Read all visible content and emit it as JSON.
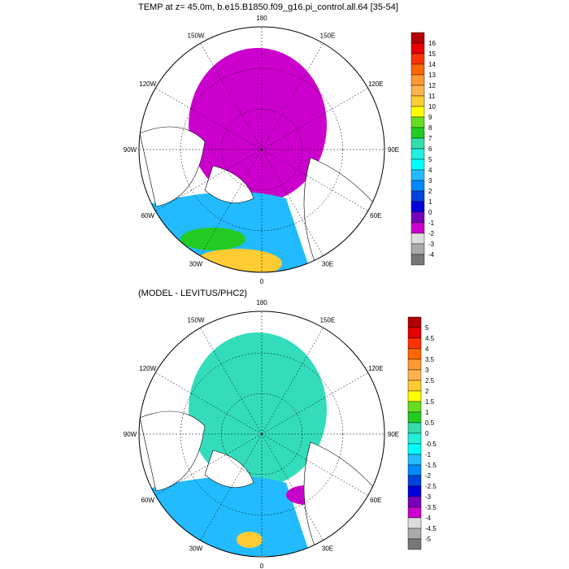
{
  "panels": [
    {
      "title": "TEMP at z=  45.0m, b.e15.B1850.f09_g16.pi_control.all.64 [35-54]",
      "labels": {
        "top": "180",
        "nw": "150W",
        "ne": "150E",
        "wnw": "120W",
        "ene": "120E",
        "w": "90W",
        "e": "90E",
        "wsw": "60W",
        "ese": "60E",
        "sw": "30W",
        "se": "30E",
        "bottom": "0"
      },
      "colorbar": {
        "labels": [
          "16",
          "15",
          "14",
          "13",
          "12",
          "11",
          "10",
          "9",
          "8",
          "7",
          "6",
          "5",
          "4",
          "3",
          "2",
          "1",
          "0",
          "-1",
          "-2",
          "-3",
          "-4"
        ],
        "colors": [
          "#b30000",
          "#e60000",
          "#ff3300",
          "#ff6600",
          "#ff9933",
          "#ffb34d",
          "#ffcc33",
          "#ffff00",
          "#66dd22",
          "#22cc22",
          "#33ddaa",
          "#22eedd",
          "#00ffff",
          "#22bbff",
          "#0088ff",
          "#0044dd",
          "#0000dd",
          "#7700bb",
          "#cc00cc",
          "#dddddd",
          "#aaaaaa",
          "#777777"
        ]
      },
      "fill": {
        "ocean": "#cc00cc",
        "south": "#22bbff"
      }
    },
    {
      "title": "(MODEL - LEVITUS/PHC2)",
      "labels": {
        "top": "180",
        "nw": "150W",
        "ne": "150E",
        "wnw": "120W",
        "ene": "120E",
        "w": "90W",
        "e": "90E",
        "wsw": "60W",
        "ese": "60E",
        "sw": "30W",
        "se": "30E",
        "bottom": "0"
      },
      "colorbar": {
        "labels": [
          "5",
          "4.5",
          "4",
          "3.5",
          "3",
          "2.5",
          "2",
          "1.5",
          "1",
          "0.5",
          "0",
          "-0.5",
          "-1",
          "-1.5",
          "-2",
          "-2.5",
          "-3",
          "-3.5",
          "-4",
          "-4.5",
          "-5"
        ],
        "colors": [
          "#b30000",
          "#e60000",
          "#ff3300",
          "#ff6600",
          "#ff9933",
          "#ffb34d",
          "#ffcc33",
          "#ffff00",
          "#66dd22",
          "#22cc22",
          "#33ddaa",
          "#22eedd",
          "#00ffff",
          "#22bbff",
          "#0088ff",
          "#0044dd",
          "#0000dd",
          "#7700bb",
          "#cc00cc",
          "#dddddd",
          "#aaaaaa",
          "#777777"
        ]
      },
      "fill": {
        "ocean": "#33ddbb",
        "south": "#22bbff"
      }
    }
  ]
}
